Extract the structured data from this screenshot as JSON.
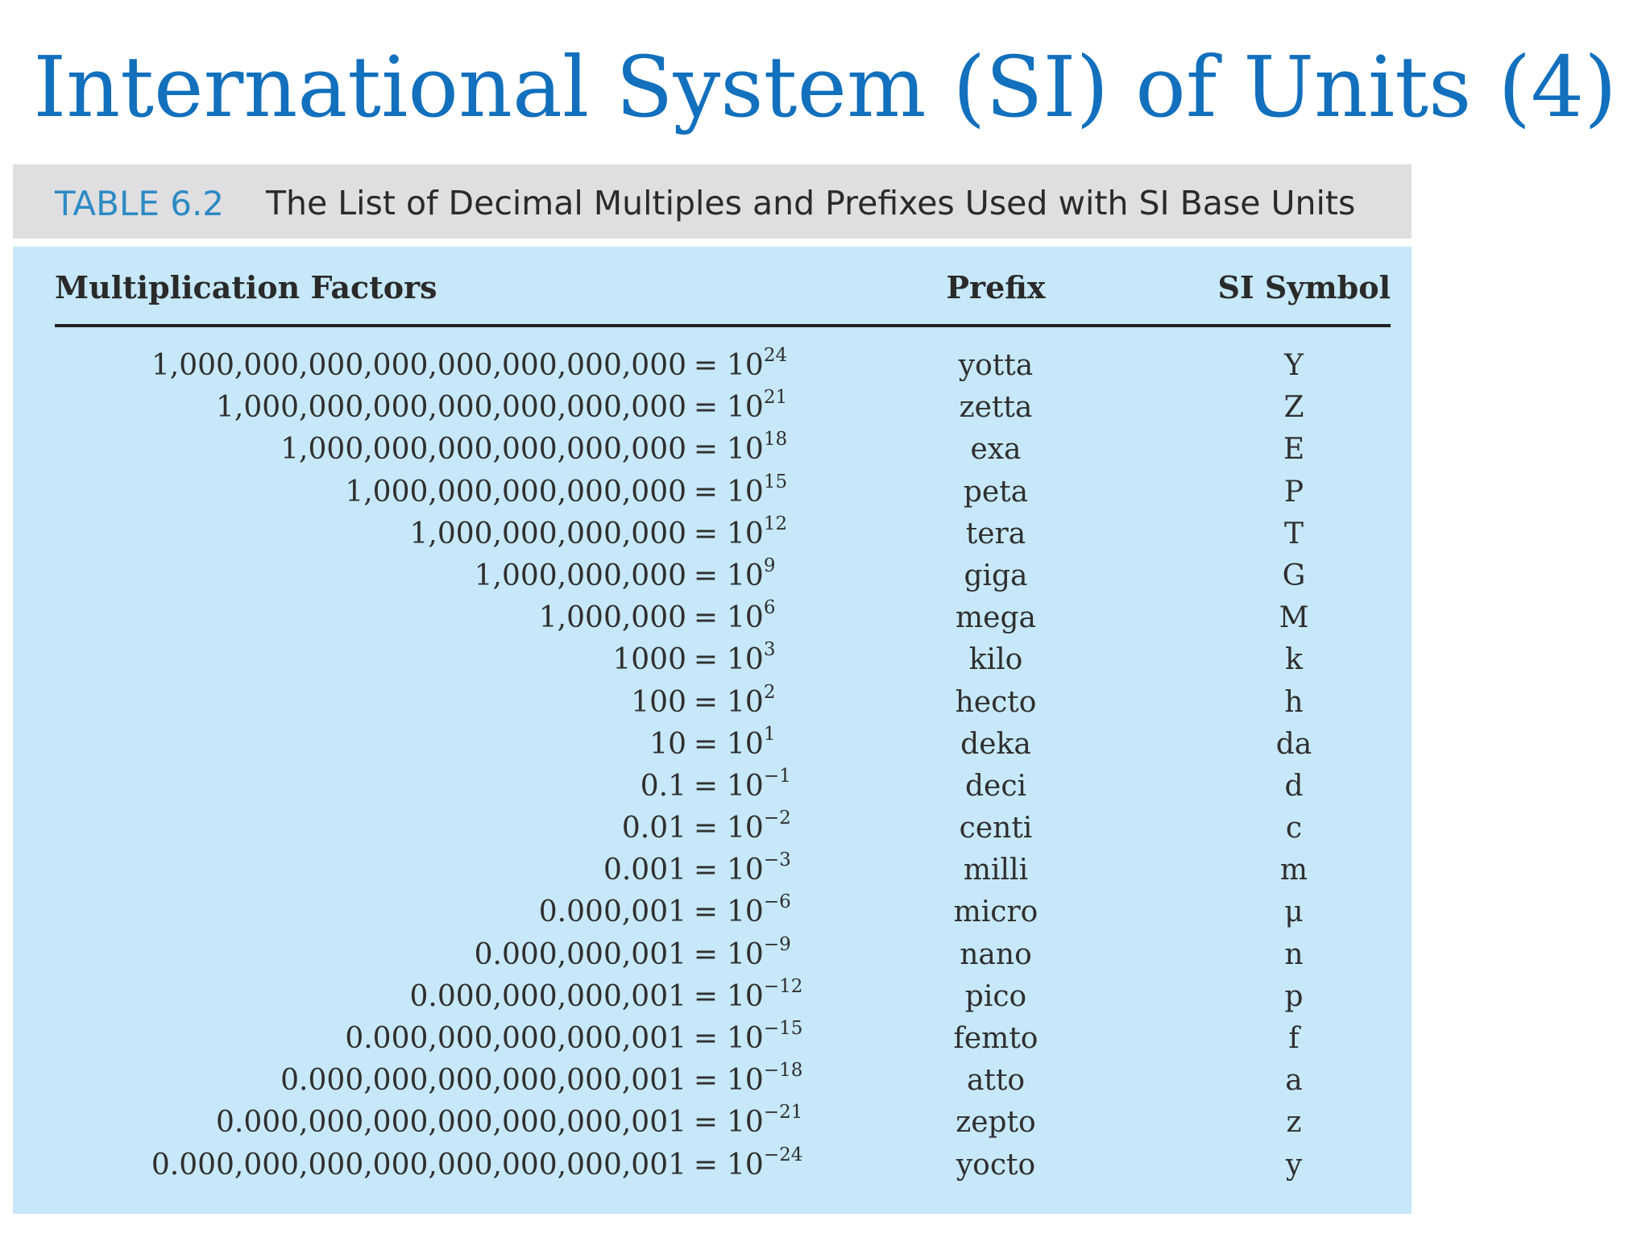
{
  "slide": {
    "title": "International System (SI) of Units (4)"
  },
  "table": {
    "number": "TABLE 6.2",
    "caption": "The List of Decimal Multiples and Prefixes Used with SI Base Units",
    "headers": {
      "factor": "Multiplication Factors",
      "prefix": "Prefix",
      "symbol": "SI Symbol"
    },
    "rows": [
      {
        "decimal": "1,000,000,000,000,000,000,000,000",
        "eq": "=",
        "base": "10",
        "exp": "24",
        "prefix": "yotta",
        "symbol": "Y"
      },
      {
        "decimal": "1,000,000,000,000,000,000,000",
        "eq": "=",
        "base": "10",
        "exp": "21",
        "prefix": "zetta",
        "symbol": "Z"
      },
      {
        "decimal": "1,000,000,000,000,000,000",
        "eq": "=",
        "base": "10",
        "exp": "18",
        "prefix": "exa",
        "symbol": "E"
      },
      {
        "decimal": "1,000,000,000,000,000",
        "eq": "=",
        "base": "10",
        "exp": "15",
        "prefix": "peta",
        "symbol": "P"
      },
      {
        "decimal": "1,000,000,000,000",
        "eq": "=",
        "base": "10",
        "exp": "12",
        "prefix": "tera",
        "symbol": "T"
      },
      {
        "decimal": "1,000,000,000",
        "eq": "=",
        "base": "10",
        "exp": "9",
        "prefix": "giga",
        "symbol": "G"
      },
      {
        "decimal": "1,000,000",
        "eq": "=",
        "base": "10",
        "exp": "6",
        "prefix": "mega",
        "symbol": "M"
      },
      {
        "decimal": "1000",
        "eq": "=",
        "base": "10",
        "exp": "3",
        "prefix": "kilo",
        "symbol": "k"
      },
      {
        "decimal": "100",
        "eq": "=",
        "base": "10",
        "exp": "2",
        "prefix": "hecto",
        "symbol": "h"
      },
      {
        "decimal": "10",
        "eq": "=",
        "base": "10",
        "exp": "1",
        "prefix": "deka",
        "symbol": "da"
      },
      {
        "decimal": "0.1",
        "eq": "=",
        "base": "10",
        "exp": "−1",
        "prefix": "deci",
        "symbol": "d"
      },
      {
        "decimal": "0.01",
        "eq": "=",
        "base": "10",
        "exp": "−2",
        "prefix": "centi",
        "symbol": "c"
      },
      {
        "decimal": "0.001",
        "eq": "=",
        "base": "10",
        "exp": "−3",
        "prefix": "milli",
        "symbol": "m"
      },
      {
        "decimal": "0.000,001",
        "eq": "=",
        "base": "10",
        "exp": "−6",
        "prefix": "micro",
        "symbol": "μ"
      },
      {
        "decimal": "0.000,000,001",
        "eq": "=",
        "base": "10",
        "exp": "−9",
        "prefix": "nano",
        "symbol": "n"
      },
      {
        "decimal": "0.000,000,000,001",
        "eq": "=",
        "base": "10",
        "exp": "−12",
        "prefix": "pico",
        "symbol": "p"
      },
      {
        "decimal": "0.000,000,000,000,001",
        "eq": "=",
        "base": "10",
        "exp": "−15",
        "prefix": "femto",
        "symbol": "f"
      },
      {
        "decimal": "0.000,000,000,000,000,001",
        "eq": "=",
        "base": "10",
        "exp": "−18",
        "prefix": "atto",
        "symbol": "a"
      },
      {
        "decimal": "0.000,000,000,000,000,000,001",
        "eq": "=",
        "base": "10",
        "exp": "−21",
        "prefix": "zepto",
        "symbol": "z"
      },
      {
        "decimal": "0.000,000,000,000,000,000,000,001",
        "eq": "=",
        "base": "10",
        "exp": "−24",
        "prefix": "yocto",
        "symbol": "y"
      }
    ]
  },
  "colors": {
    "title": "#1270bd",
    "caption_number": "#2d8ac4",
    "caption_background": "#dfdfe1",
    "table_background": "#c6e8f8"
  }
}
